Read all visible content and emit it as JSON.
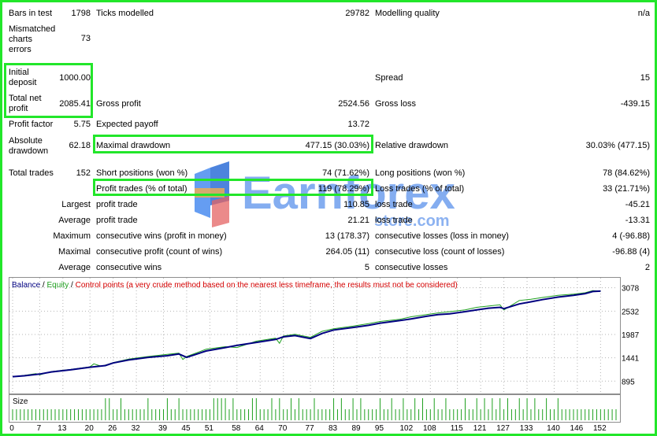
{
  "report": {
    "bars_in_test": {
      "label": "Bars in test",
      "value": "1798"
    },
    "ticks_modelled": {
      "label": "Ticks modelled",
      "value": "29782"
    },
    "modelling_quality": {
      "label": "Modelling quality",
      "value": "n/a"
    },
    "mismatched": {
      "label_l1": "Mismatched",
      "label_l2": "charts",
      "label_l3": "errors",
      "value": "73"
    },
    "initial_deposit": {
      "label_l1": "Initial",
      "label_l2": "deposit",
      "value": "1000.00"
    },
    "spread": {
      "label": "Spread",
      "value": "15"
    },
    "total_net_profit": {
      "label_l1": "Total net",
      "label_l2": "profit",
      "value": "2085.41"
    },
    "gross_profit": {
      "label": "Gross profit",
      "value": "2524.56"
    },
    "gross_loss": {
      "label": "Gross loss",
      "value": "-439.15"
    },
    "profit_factor": {
      "label": "Profit factor",
      "value": "5.75"
    },
    "expected_payoff": {
      "label": "Expected payoff",
      "value": "13.72"
    },
    "absolute_drawdown": {
      "label_l1": "Absolute",
      "label_l2": "drawdown",
      "value": "62.18"
    },
    "maximal_drawdown": {
      "label": "Maximal drawdown",
      "value": "477.15 (30.03%)"
    },
    "relative_drawdown": {
      "label": "Relative drawdown",
      "value": "30.03% (477.15)"
    },
    "total_trades": {
      "label": "Total trades",
      "value": "152"
    },
    "short_positions": {
      "label": "Short positions (won %)",
      "value": "74 (71.62%)"
    },
    "long_positions": {
      "label": "Long positions (won %)",
      "value": "78 (84.62%)"
    },
    "profit_trades": {
      "label": "Profit trades (% of total)",
      "value": "119 (78.29%)"
    },
    "loss_trades": {
      "label": "Loss trades (% of total)",
      "value": "33 (21.71%)"
    },
    "largest": {
      "label": "Largest",
      "profit_label": "profit trade",
      "profit_value": "110.85",
      "loss_label": "loss trade",
      "loss_value": "-45.21"
    },
    "average": {
      "label": "Average",
      "profit_label": "profit trade",
      "profit_value": "21.21",
      "loss_label": "loss trade",
      "loss_value": "-13.31"
    },
    "maximum": {
      "label": "Maximum",
      "profit_label": "consecutive wins (profit in money)",
      "profit_value": "13 (178.37)",
      "loss_label": "consecutive losses (loss in money)",
      "loss_value": "4 (-96.88)"
    },
    "maximal": {
      "label": "Maximal",
      "profit_label": "consecutive profit (count of wins)",
      "profit_value": "264.05 (11)",
      "loss_label": "consecutive loss (count of losses)",
      "loss_value": "-96.88 (4)"
    },
    "average_consec": {
      "label": "Average",
      "profit_label": "consecutive wins",
      "profit_value": "5",
      "loss_label": "consecutive losses",
      "loss_value": "2"
    }
  },
  "watermark": {
    "brand": "Earnforex",
    "sub": "store.com"
  },
  "colors": {
    "highlight": "#22e62a",
    "balance": "#000080",
    "equity": "#1fa01f",
    "control": "#d40000",
    "grid": "#b4b4b4"
  },
  "chart_data": {
    "type": "line",
    "legend": {
      "balance": "Balance",
      "sep1": " / ",
      "equity": "Equity",
      "sep2": " / ",
      "control": "Control points (a very crude method based on the nearest less timeframe, the results must not be considered)"
    },
    "yticks": [
      "3078",
      "2532",
      "1987",
      "1441",
      "895"
    ],
    "ylim": [
      735,
      3200
    ],
    "xticks": [
      "0",
      "7",
      "13",
      "20",
      "26",
      "32",
      "39",
      "45",
      "51",
      "58",
      "64",
      "70",
      "77",
      "83",
      "89",
      "95",
      "102",
      "108",
      "115",
      "121",
      "127",
      "133",
      "140",
      "146",
      "152"
    ],
    "xlim": [
      0,
      156
    ],
    "size_label": "Size",
    "series": [
      {
        "name": "Balance",
        "x": [
          0,
          3,
          7,
          10,
          15,
          20,
          24,
          26,
          30,
          35,
          40,
          43,
          45,
          50,
          55,
          58,
          63,
          68,
          70,
          73,
          77,
          80,
          83,
          88,
          92,
          95,
          100,
          103,
          107,
          110,
          113,
          117,
          120,
          123,
          126,
          127,
          131,
          134,
          137,
          141,
          145,
          148,
          150,
          152
        ],
        "y": [
          1000,
          1020,
          1060,
          1110,
          1160,
          1220,
          1260,
          1320,
          1390,
          1450,
          1490,
          1530,
          1450,
          1600,
          1680,
          1730,
          1800,
          1870,
          1930,
          1960,
          1890,
          2010,
          2090,
          2150,
          2200,
          2250,
          2310,
          2350,
          2410,
          2450,
          2470,
          2520,
          2560,
          2600,
          2620,
          2590,
          2700,
          2750,
          2800,
          2860,
          2900,
          2940,
          2990,
          3000
        ]
      },
      {
        "name": "Equity",
        "x": [
          0,
          3,
          6,
          7,
          10,
          15,
          20,
          21,
          23,
          26,
          30,
          35,
          40,
          43,
          44,
          45,
          50,
          55,
          58,
          63,
          68,
          69,
          70,
          73,
          77,
          80,
          83,
          88,
          92,
          95,
          100,
          103,
          107,
          110,
          113,
          117,
          120,
          123,
          126,
          127,
          131,
          134,
          137,
          141,
          145,
          148,
          150,
          152
        ],
        "y": [
          1000,
          1030,
          1070,
          1040,
          1120,
          1170,
          1230,
          1300,
          1240,
          1330,
          1410,
          1470,
          1520,
          1550,
          1400,
          1470,
          1640,
          1700,
          1680,
          1830,
          1900,
          1780,
          1950,
          1990,
          1920,
          2060,
          2120,
          2180,
          2240,
          2290,
          2340,
          2400,
          2450,
          2490,
          2520,
          2560,
          2620,
          2650,
          2680,
          2560,
          2780,
          2810,
          2850,
          2900,
          2930,
          2960,
          3010,
          3000
        ]
      }
    ],
    "size_ticks": [
      24,
      25,
      28,
      35,
      40,
      43,
      52,
      53,
      54,
      55,
      57,
      62,
      63,
      67,
      69,
      72,
      74,
      78,
      83,
      85,
      88,
      90,
      95,
      98,
      101,
      104,
      106,
      109,
      112,
      117,
      120,
      122,
      124,
      126,
      128,
      131,
      133,
      135,
      138,
      141
    ]
  }
}
